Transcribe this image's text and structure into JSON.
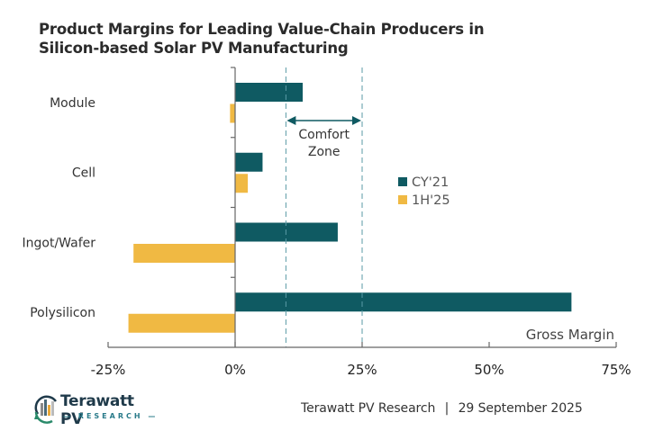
{
  "title_lines": [
    "Product Margins for Leading Value-Chain Producers in",
    "Silicon-based Solar PV Manufacturing"
  ],
  "chart_data": {
    "type": "bar",
    "orientation": "horizontal",
    "title": "Product Margins for Leading Value-Chain Producers in Silicon-based Solar PV Manufacturing",
    "categories": [
      "Module",
      "Cell",
      "Ingot/Wafer",
      "Polysilicon"
    ],
    "series": [
      {
        "name": "CY'21",
        "color": "#0f5a62",
        "values": [
          13.3,
          5.4,
          20.2,
          66.2
        ]
      },
      {
        "name": "1H'25",
        "color": "#f0b943",
        "values": [
          -1.0,
          2.5,
          -20.0,
          -21.0
        ]
      }
    ],
    "xlabel": "Gross Margin",
    "ylabel": "",
    "xlim": [
      -25,
      75
    ],
    "xticks": [
      -25,
      0,
      25,
      50,
      75
    ],
    "xtick_labels": [
      "-25%",
      "0%",
      "25%",
      "50%",
      "75%"
    ],
    "legend": {
      "position": "right-center",
      "entries": [
        "CY'21",
        "1H'25"
      ]
    },
    "annotations": [
      {
        "type": "vline",
        "x": 10,
        "style": "dashed"
      },
      {
        "type": "vline",
        "x": 25,
        "style": "dashed"
      },
      {
        "type": "double-arrow",
        "from": 10,
        "to": 25,
        "label_lines": [
          "Comfort",
          "Zone"
        ]
      }
    ],
    "grid": false
  },
  "footer": {
    "source": "Terawatt PV Research",
    "separator": "|",
    "date": "29 September 2025"
  },
  "logo": {
    "name": "Terawatt PV",
    "subtitle": "— RESEARCH —"
  },
  "colors": {
    "dashed_line": "#5a9aa5",
    "axis": "#666666",
    "arrow": "#0f5a62"
  }
}
